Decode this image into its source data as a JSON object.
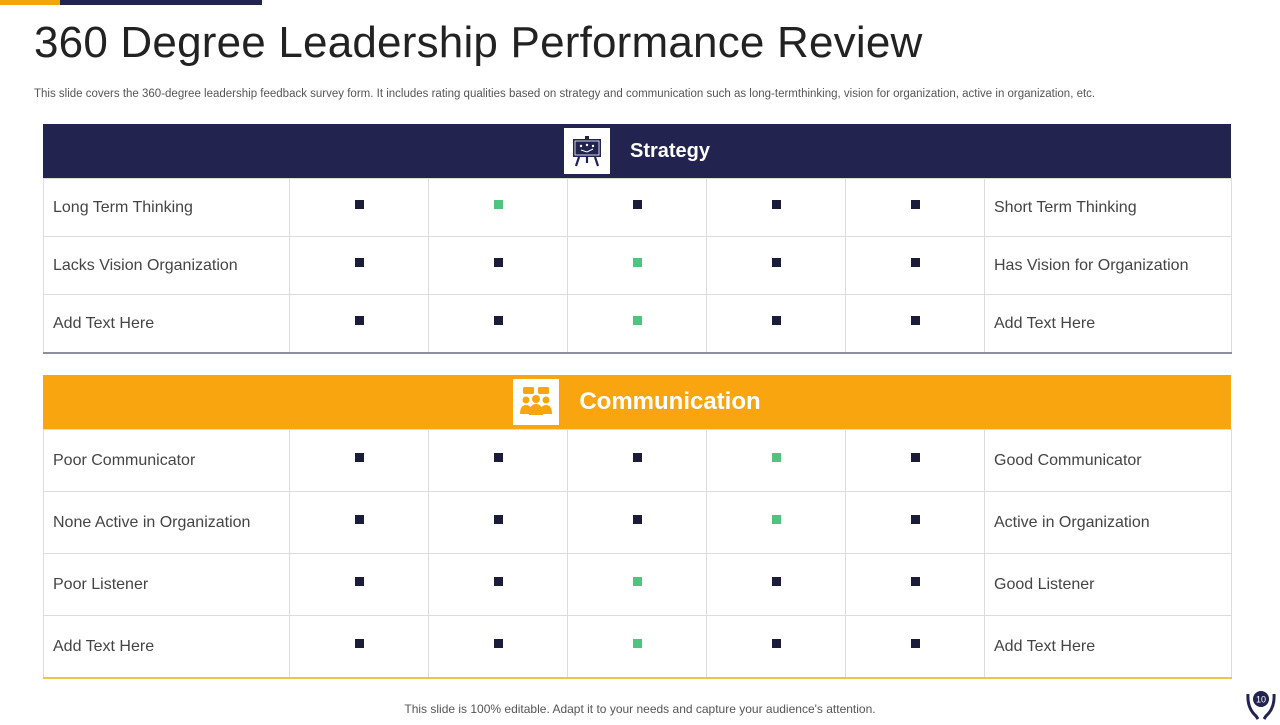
{
  "title": "360 Degree Leadership Performance Review",
  "subtitle": "This slide covers the 360-degree leadership feedback survey form. It includes rating qualities based on strategy and communication such as long-termthinking, vision for organization, active in organization, etc.",
  "colors": {
    "navy": "#22234f",
    "orange": "#f9a510",
    "marker": "#1b1c3a",
    "selected": "#4ec47f"
  },
  "strategy": {
    "title": "Strategy",
    "icon": "presentation-board-icon",
    "rows": [
      {
        "left": "Long Term Thinking",
        "right": "Short Term Thinking",
        "selected": 2
      },
      {
        "left": "Lacks Vision  Organization",
        "right": "Has Vision for Organization",
        "selected": 3
      },
      {
        "left": "Add Text Here",
        "right": "Add Text Here",
        "selected": 3
      }
    ]
  },
  "communication": {
    "title": "Communication",
    "icon": "group-chat-icon",
    "rows": [
      {
        "left": "Poor Communicator",
        "right": "Good Communicator",
        "selected": 4
      },
      {
        "left": "None Active in Organization",
        "right": " Active in Organization",
        "selected": 4
      },
      {
        "left": "Poor Listener",
        "right": "Good Listener",
        "selected": 3
      },
      {
        "left": "Add Text Here",
        "right": "Add Text Here",
        "selected": 3
      }
    ]
  },
  "footer": "This slide is 100% editable. Adapt it to your needs and capture your audience's attention.",
  "page_number": "10"
}
